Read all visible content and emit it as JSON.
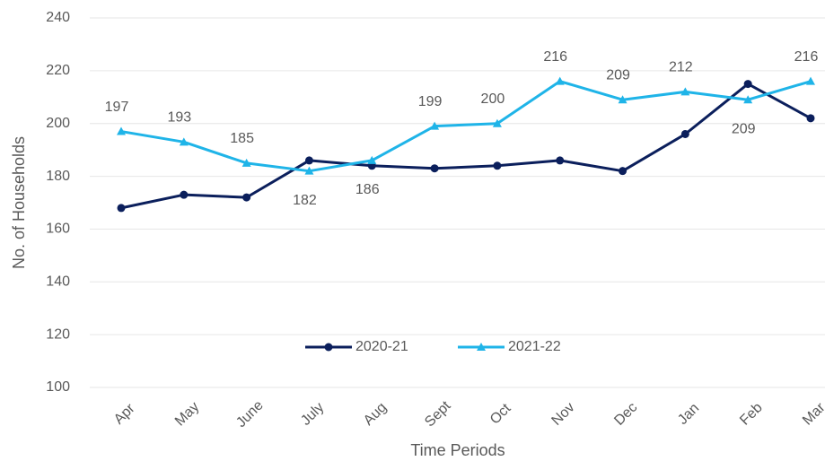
{
  "chart_data": {
    "type": "line",
    "x_label": "Time Periods",
    "y_label": "No. of Households",
    "categories": [
      "Apr",
      "May",
      "June",
      "July",
      "Aug",
      "Sept",
      "Oct",
      "Nov",
      "Dec",
      "Jan",
      "Feb",
      "Mar"
    ],
    "series": [
      {
        "name": "2020-21",
        "color": "#0b1f5c",
        "marker": "circle",
        "values": [
          168,
          173,
          172,
          186,
          184,
          183,
          184,
          186,
          182,
          196,
          215,
          202
        ]
      },
      {
        "name": "2021-22",
        "color": "#1fb4e8",
        "marker": "triangle",
        "data_labels": true,
        "values": [
          197,
          193,
          185,
          182,
          186,
          199,
          200,
          216,
          209,
          212,
          209,
          216
        ]
      }
    ],
    "ylim": [
      100,
      240
    ],
    "yticks": [
      100,
      120,
      140,
      160,
      180,
      200,
      220,
      240
    ],
    "grid": true,
    "legend": "bottom"
  }
}
